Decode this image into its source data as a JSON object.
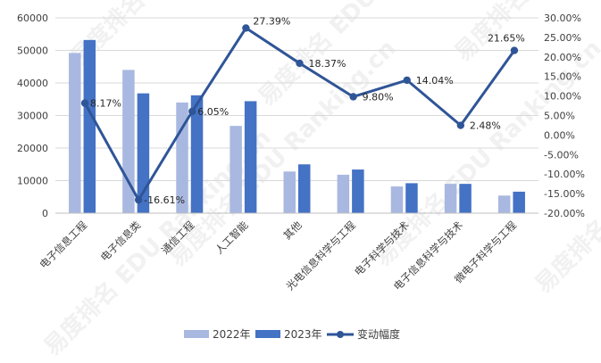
{
  "chart_data": {
    "type": "bar",
    "categories": [
      "电子信息工程",
      "电子信息类",
      "通信工程",
      "人工智能",
      "其他",
      "光电信息科学与工程",
      "电子科学与技术",
      "电子信息科学与技术",
      "微电子科学与工程"
    ],
    "series": [
      {
        "name": "2022年",
        "type": "bar",
        "axis": "left",
        "color": "#a9b8e0",
        "values": [
          49200,
          44000,
          34000,
          26800,
          12800,
          11800,
          8200,
          9000,
          5400
        ]
      },
      {
        "name": "2023年",
        "type": "bar",
        "axis": "left",
        "color": "#4472c4",
        "values": [
          53200,
          36800,
          36200,
          34400,
          15000,
          13400,
          9200,
          9000,
          6600
        ]
      },
      {
        "name": "变动幅度",
        "type": "line",
        "axis": "right",
        "color": "#2f5597",
        "values": [
          8.17,
          -16.61,
          6.05,
          27.39,
          18.37,
          9.8,
          14.04,
          2.48,
          21.65
        ]
      }
    ],
    "data_labels": [
      "8.17%",
      "-16.61%",
      "6.05%",
      "27.39%",
      "18.37%",
      "9.80%",
      "14.04%",
      "2.48%",
      "21.65%"
    ],
    "y_left": {
      "min": 0,
      "max": 60000,
      "step": 10000,
      "ticks": [
        "0",
        "10000",
        "20000",
        "30000",
        "40000",
        "50000",
        "60000"
      ]
    },
    "y_right": {
      "min": -20,
      "max": 30,
      "step": 5,
      "ticks": [
        "-20.00%",
        "-15.00%",
        "-10.00%",
        "-5.00%",
        "0.00%",
        "5.00%",
        "10.00%",
        "15.00%",
        "20.00%",
        "25.00%",
        "30.00%"
      ]
    },
    "grid": true,
    "legend_position": "bottom",
    "legend": [
      "2022年",
      "2023年",
      "变动幅度"
    ],
    "watermark": "易度排名 EDU Ranking.cn"
  }
}
